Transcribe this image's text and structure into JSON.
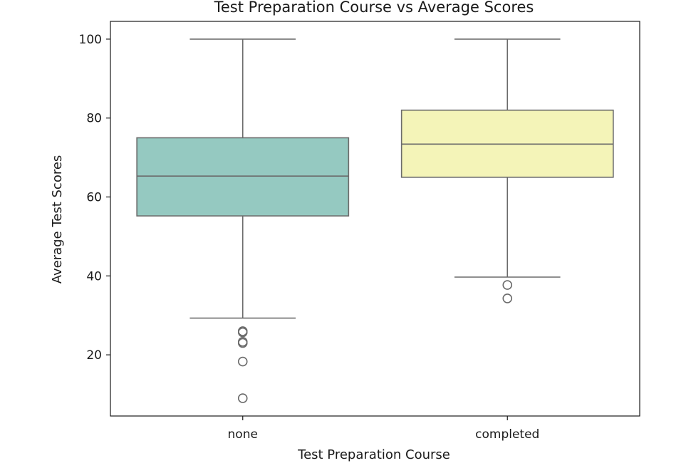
{
  "chart_data": {
    "type": "boxplot",
    "title": "Test Preparation Course vs Average Scores",
    "xlabel": "Test Preparation Course",
    "ylabel": "Average Test Scores",
    "ylim": [
      4.5,
      104.5
    ],
    "yticks": [
      20,
      40,
      60,
      80,
      100
    ],
    "grid": false,
    "categories": [
      "none",
      "completed"
    ],
    "boxes": [
      {
        "category": "none",
        "color": "#95c9c1",
        "whisker_low": 29.3,
        "q1": 55.2,
        "median": 65.3,
        "q3": 75.0,
        "whisker_high": 100,
        "outliers": [
          26.0,
          25.7,
          23.3,
          23.0,
          18.3,
          9.0
        ]
      },
      {
        "category": "completed",
        "color": "#f4f4b8",
        "whisker_low": 39.7,
        "q1": 65.0,
        "median": 73.4,
        "q3": 82.0,
        "whisker_high": 100,
        "outliers": [
          37.7,
          34.3
        ]
      }
    ]
  }
}
